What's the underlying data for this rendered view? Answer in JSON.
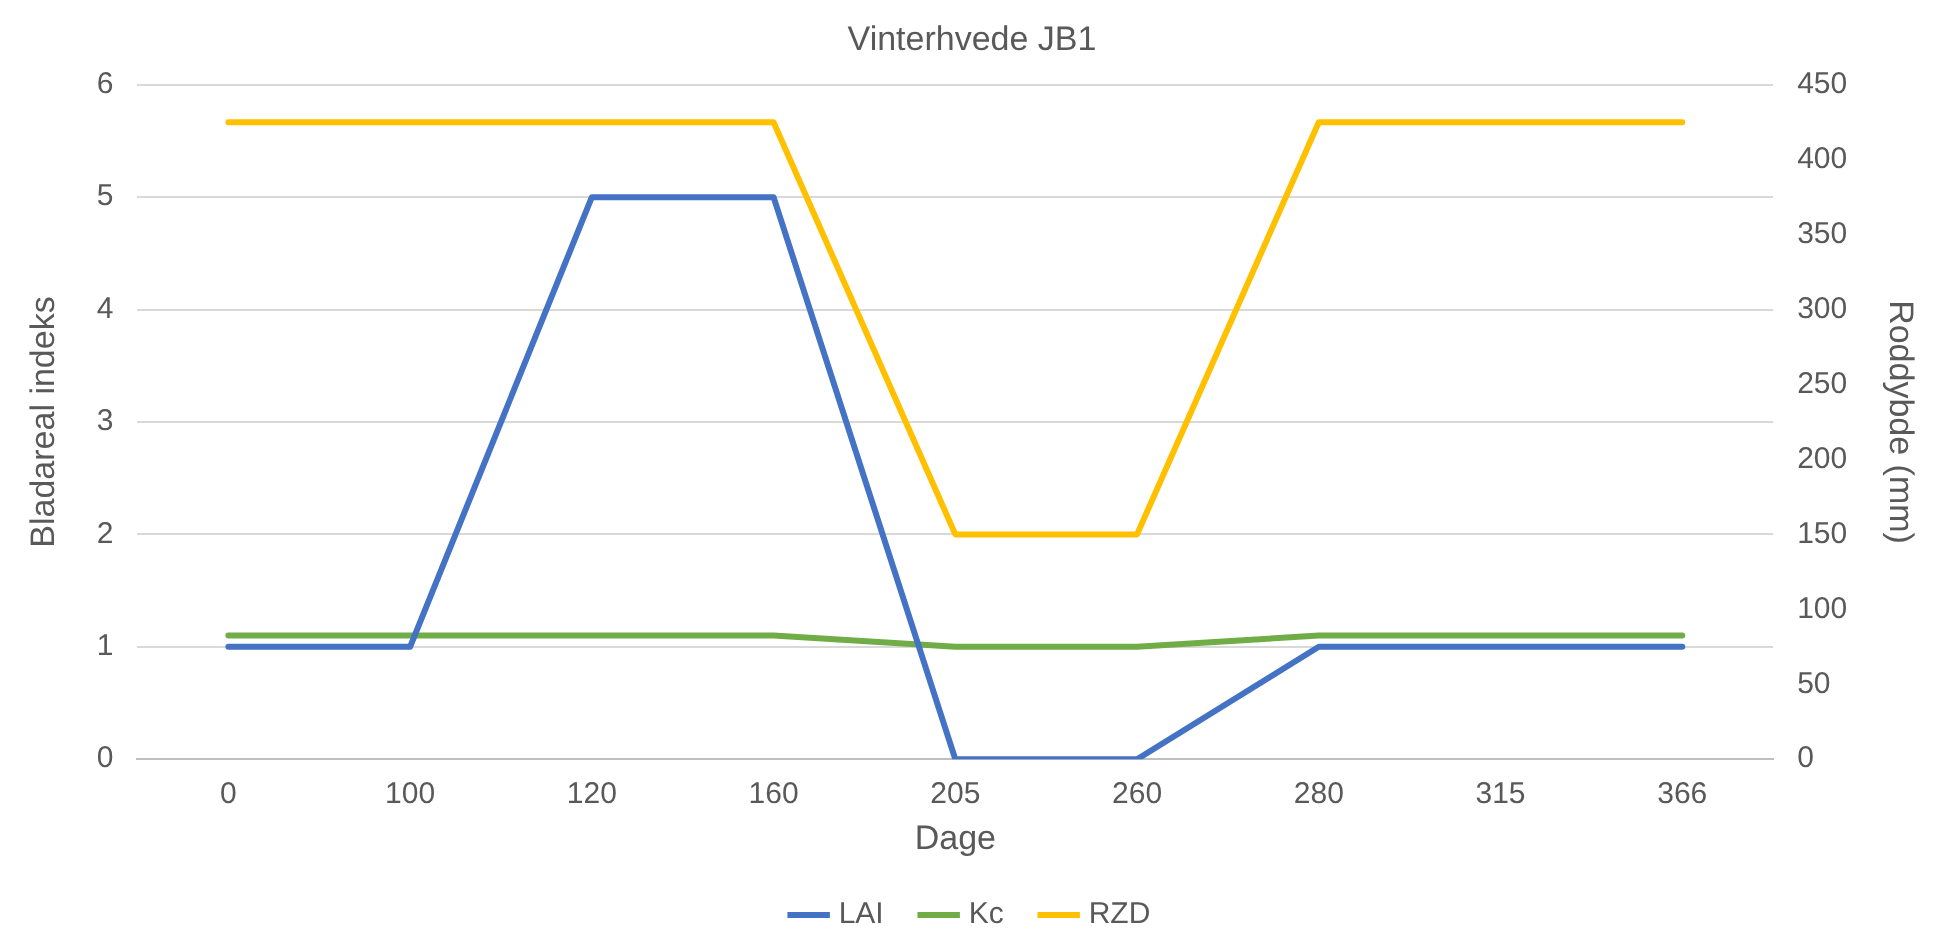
{
  "chart_data": {
    "type": "line",
    "title": "Vinterhvede JB1",
    "xlabel": "Dage",
    "ylabel": "Bladareal indeks",
    "y2label": "Roddybde (mm)",
    "categories": [
      "0",
      "100",
      "120",
      "160",
      "205",
      "260",
      "280",
      "315",
      "366"
    ],
    "series": [
      {
        "name": "LAI",
        "color": "#4472c4",
        "values": [
          1,
          1,
          5,
          5,
          0,
          0,
          1,
          1,
          1
        ]
      },
      {
        "name": "Kc",
        "color": "#70ad47",
        "values": [
          1.1,
          1.1,
          1.1,
          1.1,
          1,
          1,
          1.1,
          1.1,
          1.1
        ]
      },
      {
        "name": "RZD",
        "color": "#ffc000",
        "axis": "y2",
        "values": [
          425,
          425,
          425,
          425,
          150,
          150,
          425,
          425,
          425
        ]
      }
    ],
    "ylim": [
      0,
      6
    ],
    "yticks": [
      0,
      1,
      2,
      3,
      4,
      5,
      6
    ],
    "y2lim": [
      0,
      450
    ],
    "y2ticks": [
      0,
      50,
      100,
      150,
      200,
      250,
      300,
      350,
      400,
      450
    ],
    "grid": "y",
    "legend": "bottom",
    "marker": "none",
    "line_style": "solid"
  }
}
